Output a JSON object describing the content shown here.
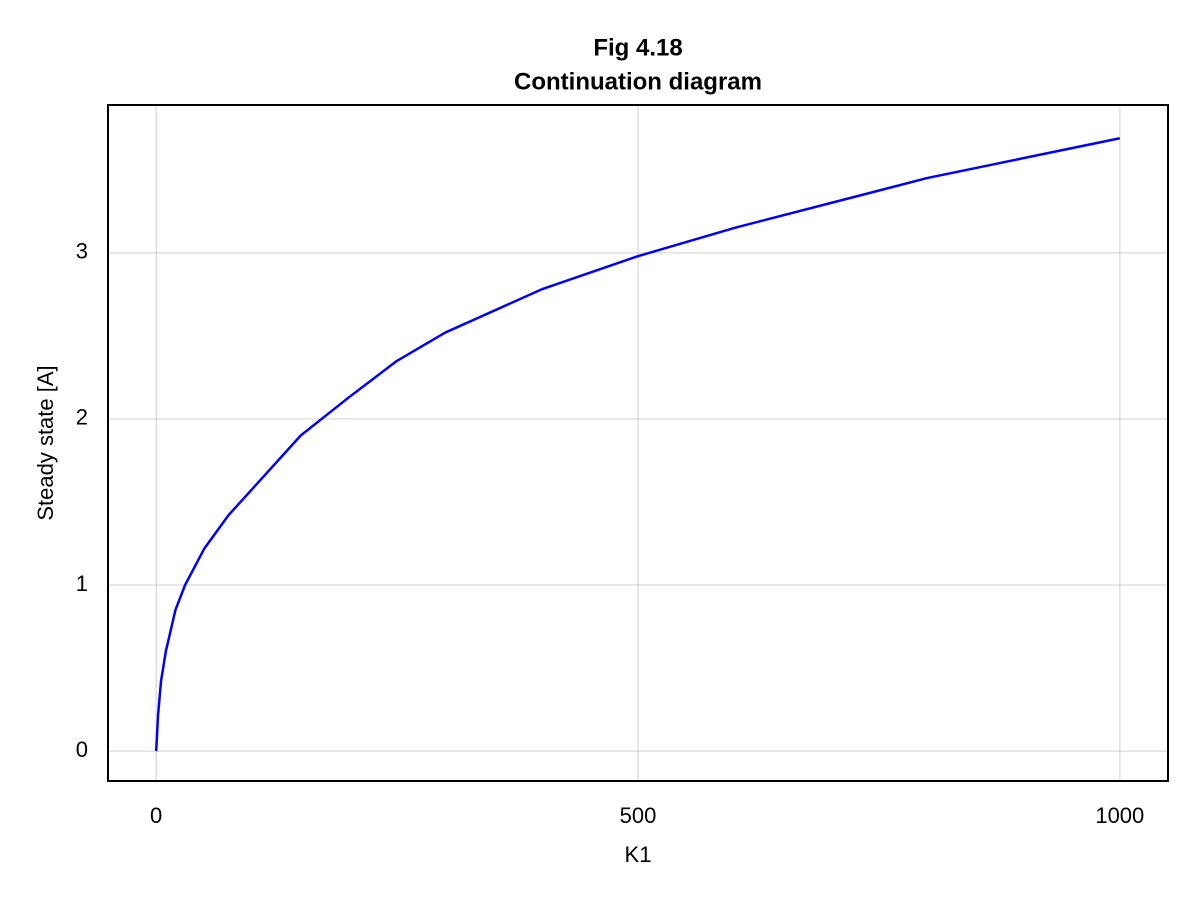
{
  "chart_data": {
    "type": "line",
    "title": "Fig 4.18",
    "subtitle": "Continuation diagram",
    "x_label": "K1",
    "y_label": "Steady state [A]",
    "x": [
      0,
      2,
      5,
      10,
      20,
      30,
      50,
      75,
      100,
      150,
      200,
      250,
      300,
      400,
      500,
      600,
      700,
      800,
      900,
      1000
    ],
    "series": [
      {
        "color": "#0000ff",
        "values": [
          0,
          0.22,
          0.42,
          0.6,
          0.85,
          1.0,
          1.22,
          1.42,
          1.58,
          1.9,
          2.13,
          2.35,
          2.52,
          2.78,
          2.98,
          3.15,
          3.3,
          3.45,
          3.57,
          3.69
        ]
      }
    ],
    "xlim": [
      -50,
      1050
    ],
    "xticks": [
      0,
      500,
      1000
    ],
    "ylim": [
      -0.18,
      3.89
    ],
    "yticks": [
      0,
      1,
      2,
      3
    ],
    "grid": true
  }
}
